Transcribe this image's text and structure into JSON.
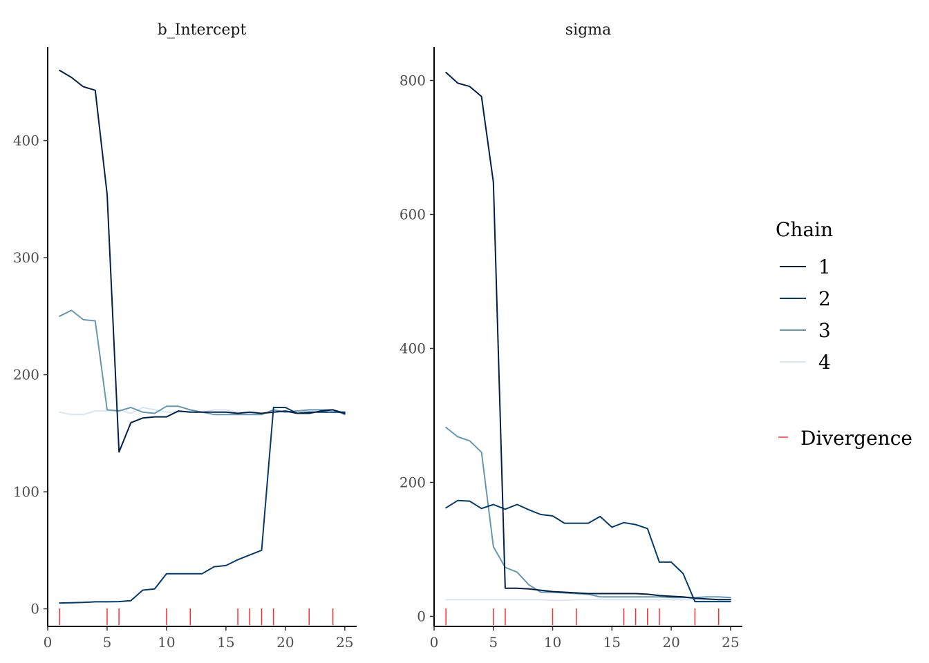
{
  "chart_data": [
    {
      "type": "line",
      "title": "b_Intercept",
      "xlabel": "",
      "ylabel": "",
      "xlim": [
        0,
        26
      ],
      "ylim": [
        -15,
        480
      ],
      "xticks": [
        0,
        5,
        10,
        15,
        20,
        25
      ],
      "yticks": [
        0,
        100,
        200,
        300,
        400
      ],
      "x": [
        1,
        2,
        3,
        4,
        5,
        6,
        7,
        8,
        9,
        10,
        11,
        12,
        13,
        14,
        15,
        16,
        17,
        18,
        19,
        20,
        21,
        22,
        23,
        24,
        25
      ],
      "series": [
        {
          "name": "1",
          "color": "#011f4b",
          "values": [
            460,
            454,
            446,
            443,
            354,
            134,
            159,
            163,
            164,
            164,
            169,
            168,
            168,
            168,
            168,
            167,
            168,
            167,
            168,
            169,
            167,
            167,
            169,
            170,
            167
          ]
        },
        {
          "name": "2",
          "color": "#03396c",
          "values": [
            5,
            5.2,
            5.5,
            6,
            6,
            6.2,
            7,
            16,
            17,
            30,
            30,
            30,
            30,
            36,
            37,
            42,
            46,
            50,
            172,
            172,
            167,
            168,
            168,
            168,
            168
          ]
        },
        {
          "name": "3",
          "color": "#6497b1",
          "values": [
            250,
            255,
            247,
            246,
            170,
            169,
            172,
            168,
            167,
            173,
            173,
            170,
            168,
            166,
            166,
            166,
            166,
            166,
            170,
            168,
            169,
            170,
            170,
            170,
            166
          ]
        },
        {
          "name": "4",
          "color": "#d9e6f2",
          "values": [
            168,
            166,
            166,
            169,
            169,
            170,
            167,
            172,
            170,
            168,
            168,
            169,
            168,
            170,
            170,
            168,
            167,
            167,
            168,
            168,
            169,
            168,
            168,
            168,
            168
          ]
        }
      ],
      "divergences": [
        1,
        5,
        6,
        10,
        12,
        16,
        17,
        18,
        19,
        22,
        24
      ]
    },
    {
      "type": "line",
      "title": "sigma",
      "xlabel": "",
      "ylabel": "",
      "xlim": [
        0,
        26
      ],
      "ylim": [
        -15,
        850
      ],
      "xticks": [
        0,
        5,
        10,
        15,
        20,
        25
      ],
      "yticks": [
        0,
        200,
        400,
        600,
        800
      ],
      "x": [
        1,
        2,
        3,
        4,
        5,
        6,
        7,
        8,
        9,
        10,
        11,
        12,
        13,
        14,
        15,
        16,
        17,
        18,
        19,
        20,
        21,
        22,
        23,
        24,
        25
      ],
      "series": [
        {
          "name": "1",
          "color": "#011f4b",
          "values": [
            812,
            796,
            791,
            776,
            648,
            42,
            42,
            41,
            39,
            37,
            36,
            35,
            34,
            34,
            34,
            34,
            34,
            33,
            31,
            30,
            29,
            27,
            26,
            25,
            25
          ]
        },
        {
          "name": "2",
          "color": "#03396c",
          "values": [
            162,
            173,
            172,
            161,
            167,
            160,
            167,
            159,
            152,
            150,
            139,
            139,
            139,
            149,
            133,
            140,
            137,
            131,
            81,
            81,
            64,
            22,
            22,
            22,
            22
          ]
        },
        {
          "name": "3",
          "color": "#6497b1",
          "values": [
            282,
            268,
            262,
            245,
            104,
            73,
            66,
            47,
            36,
            36,
            35,
            34,
            33,
            29,
            29,
            29,
            29,
            29,
            29,
            28,
            28,
            28,
            29,
            29,
            28
          ]
        },
        {
          "name": "4",
          "color": "#d9e6f2",
          "values": [
            25,
            25,
            25,
            25,
            25,
            25,
            25,
            25,
            25,
            24,
            24,
            25,
            25,
            25,
            25,
            25,
            25,
            25,
            25,
            25,
            25,
            25,
            25,
            25,
            25
          ]
        }
      ],
      "divergences": [
        1,
        5,
        6,
        10,
        12,
        16,
        17,
        18,
        19,
        22,
        24
      ]
    }
  ],
  "legend": {
    "title": "Chain",
    "placement": "right",
    "entries": [
      {
        "label": "1",
        "color": "#011f4b"
      },
      {
        "label": "2",
        "color": "#03396c"
      },
      {
        "label": "3",
        "color": "#6497b1"
      },
      {
        "label": "4",
        "color": "#d9e6f2"
      }
    ],
    "divergence_label": "Divergence",
    "divergence_color": "#ff2b2b"
  }
}
